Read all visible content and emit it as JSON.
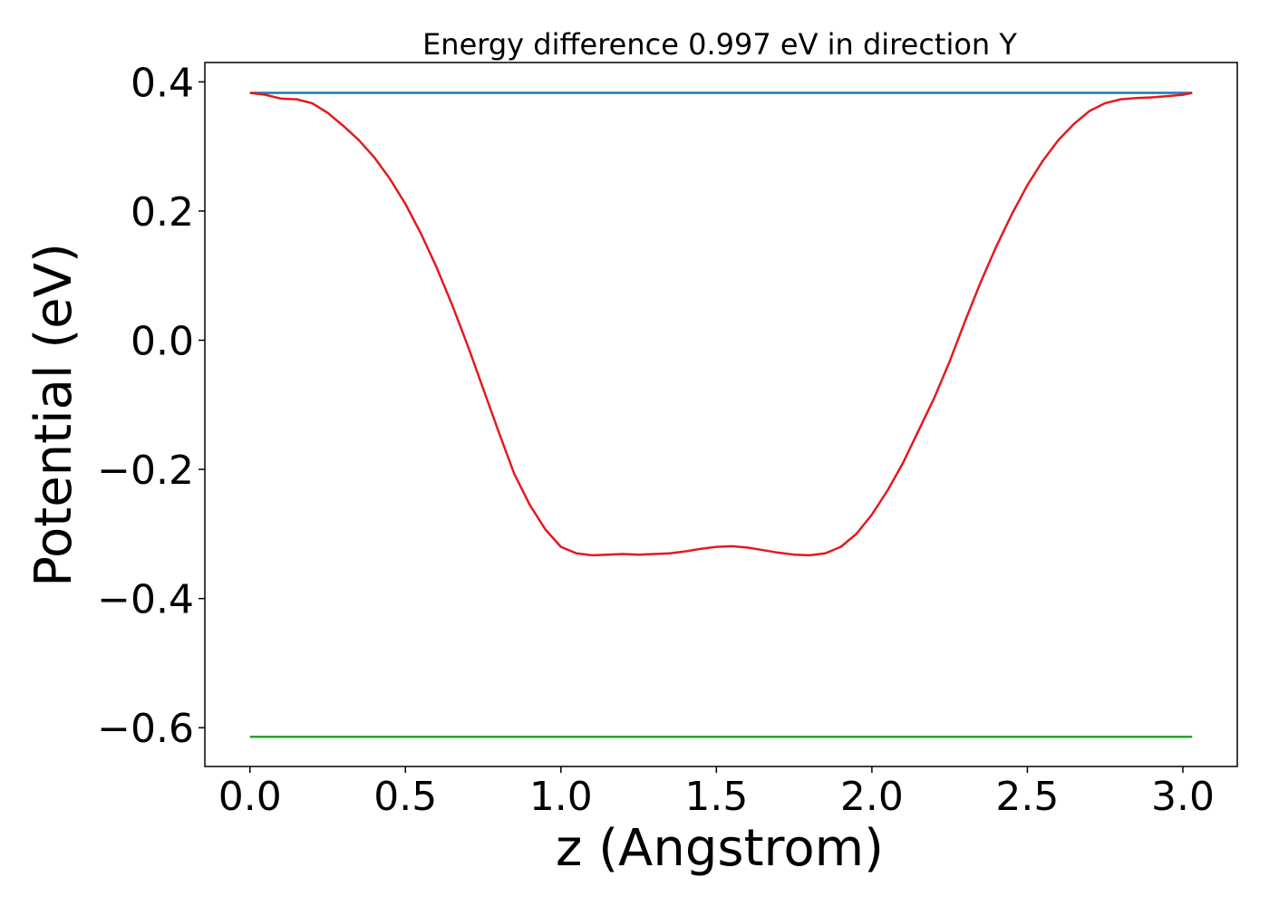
{
  "chart_data": {
    "type": "line",
    "title": "Energy difference 0.997 eV in direction Y",
    "xlabel": "z (Angstrom)",
    "ylabel": "Potential (eV)",
    "xlim": [
      -0.145,
      3.175
    ],
    "ylim": [
      -0.66,
      0.43
    ],
    "x_ticks": [
      {
        "value": 0.0,
        "label": "0.0"
      },
      {
        "value": 0.5,
        "label": "0.5"
      },
      {
        "value": 1.0,
        "label": "1.0"
      },
      {
        "value": 1.5,
        "label": "1.5"
      },
      {
        "value": 2.0,
        "label": "2.0"
      },
      {
        "value": 2.5,
        "label": "2.5"
      },
      {
        "value": 3.0,
        "label": "3.0"
      }
    ],
    "y_ticks": [
      {
        "value": 0.4,
        "label": "0.4"
      },
      {
        "value": 0.2,
        "label": "0.2"
      },
      {
        "value": 0.0,
        "label": "0.0"
      },
      {
        "value": -0.2,
        "label": "−0.2"
      },
      {
        "value": -0.4,
        "label": "−0.4"
      },
      {
        "value": -0.6,
        "label": "−0.6"
      }
    ],
    "grid": false,
    "series": [
      {
        "color": "#1f77b4",
        "x": [
          0.0,
          3.03
        ],
        "y": [
          0.383,
          0.383
        ]
      },
      {
        "color": "#2ca02c",
        "x": [
          0.0,
          3.03
        ],
        "y": [
          -0.614,
          -0.614
        ]
      },
      {
        "color": "#e31a1c",
        "x": [
          0.0,
          0.05,
          0.1,
          0.15,
          0.2,
          0.25,
          0.3,
          0.35,
          0.4,
          0.45,
          0.5,
          0.55,
          0.6,
          0.65,
          0.7,
          0.75,
          0.8,
          0.85,
          0.9,
          0.95,
          1.0,
          1.05,
          1.1,
          1.15,
          1.2,
          1.25,
          1.3,
          1.35,
          1.4,
          1.45,
          1.5,
          1.55,
          1.6,
          1.65,
          1.7,
          1.75,
          1.8,
          1.85,
          1.9,
          1.95,
          2.0,
          2.05,
          2.1,
          2.15,
          2.2,
          2.25,
          2.3,
          2.35,
          2.4,
          2.45,
          2.5,
          2.55,
          2.6,
          2.65,
          2.7,
          2.75,
          2.8,
          2.85,
          2.9,
          2.95,
          3.0,
          3.03
        ],
        "y": [
          0.383,
          0.38,
          0.374,
          0.373,
          0.367,
          0.352,
          0.332,
          0.31,
          0.283,
          0.25,
          0.211,
          0.165,
          0.113,
          0.055,
          -0.008,
          -0.075,
          -0.142,
          -0.207,
          -0.255,
          -0.293,
          -0.32,
          -0.33,
          -0.333,
          -0.332,
          -0.331,
          -0.332,
          -0.331,
          -0.33,
          -0.327,
          -0.323,
          -0.32,
          -0.319,
          -0.321,
          -0.325,
          -0.329,
          -0.332,
          -0.333,
          -0.33,
          -0.32,
          -0.3,
          -0.27,
          -0.233,
          -0.19,
          -0.14,
          -0.09,
          -0.033,
          0.03,
          0.09,
          0.145,
          0.195,
          0.24,
          0.278,
          0.31,
          0.335,
          0.355,
          0.367,
          0.373,
          0.375,
          0.376,
          0.378,
          0.38,
          0.383
        ]
      }
    ]
  }
}
